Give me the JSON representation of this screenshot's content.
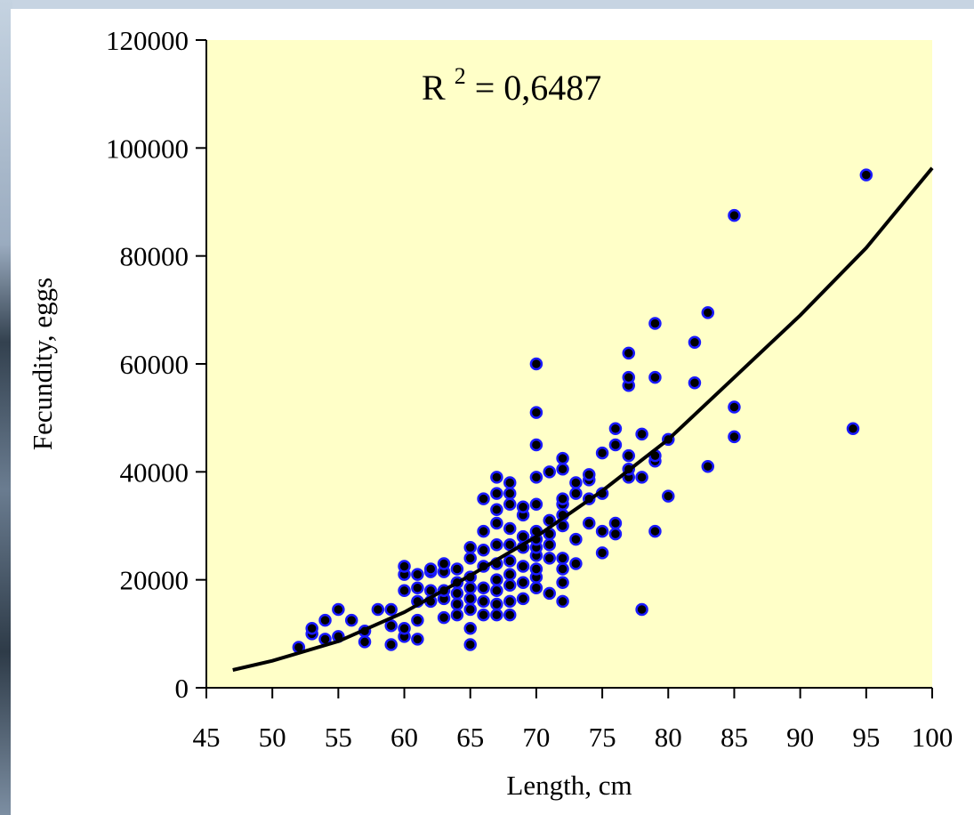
{
  "chart_data": {
    "type": "scatter",
    "xlabel": "Length, cm",
    "ylabel": "Fecundity, eggs",
    "xlim": [
      45,
      100
    ],
    "ylim": [
      0,
      120000
    ],
    "x_ticks": [
      45,
      50,
      55,
      60,
      65,
      70,
      75,
      80,
      85,
      90,
      95,
      100
    ],
    "y_ticks": [
      0,
      20000,
      40000,
      60000,
      80000,
      100000,
      120000
    ],
    "annotation": {
      "base": "R",
      "sup": "2",
      "rest": " = 0,6487"
    },
    "background_color": "#ffffc8",
    "point_fill": "#000000",
    "point_stroke": "#1a1aff",
    "trend_color": "#000000",
    "trendline": {
      "type": "power",
      "x": [
        47,
        50,
        55,
        60,
        65,
        70,
        75,
        80,
        85,
        90,
        95,
        100
      ],
      "y": [
        3300,
        5000,
        8600,
        14000,
        20800,
        28000,
        36500,
        46000,
        57500,
        69000,
        81500,
        96300
      ]
    },
    "points": [
      [
        52,
        7500
      ],
      [
        53,
        10000
      ],
      [
        53,
        11000
      ],
      [
        54,
        9000
      ],
      [
        54,
        12500
      ],
      [
        55,
        9500
      ],
      [
        55,
        14500
      ],
      [
        56,
        12500
      ],
      [
        57,
        8500
      ],
      [
        57,
        10500
      ],
      [
        58,
        14500
      ],
      [
        59,
        8000
      ],
      [
        59,
        11500
      ],
      [
        59,
        14500
      ],
      [
        60,
        9500
      ],
      [
        60,
        11000
      ],
      [
        60,
        18000
      ],
      [
        60,
        21000
      ],
      [
        60,
        22500
      ],
      [
        61,
        9000
      ],
      [
        61,
        12500
      ],
      [
        61,
        16000
      ],
      [
        61,
        18500
      ],
      [
        61,
        21000
      ],
      [
        62,
        16000
      ],
      [
        62,
        18000
      ],
      [
        62,
        21500
      ],
      [
        62,
        22000
      ],
      [
        63,
        13000
      ],
      [
        63,
        16500
      ],
      [
        63,
        18000
      ],
      [
        63,
        21500
      ],
      [
        63,
        23000
      ],
      [
        64,
        13500
      ],
      [
        64,
        15500
      ],
      [
        64,
        17500
      ],
      [
        64,
        19500
      ],
      [
        64,
        22000
      ],
      [
        65,
        8000
      ],
      [
        65,
        11000
      ],
      [
        65,
        14500
      ],
      [
        65,
        16500
      ],
      [
        65,
        18500
      ],
      [
        65,
        20500
      ],
      [
        65,
        24000
      ],
      [
        65,
        26000
      ],
      [
        66,
        13500
      ],
      [
        66,
        16000
      ],
      [
        66,
        18500
      ],
      [
        66,
        22500
      ],
      [
        66,
        25500
      ],
      [
        66,
        29000
      ],
      [
        66,
        35000
      ],
      [
        67,
        13500
      ],
      [
        67,
        15500
      ],
      [
        67,
        18000
      ],
      [
        67,
        20000
      ],
      [
        67,
        23000
      ],
      [
        67,
        26500
      ],
      [
        67,
        30500
      ],
      [
        67,
        33000
      ],
      [
        67,
        36000
      ],
      [
        67,
        39000
      ],
      [
        68,
        13500
      ],
      [
        68,
        16000
      ],
      [
        68,
        19000
      ],
      [
        68,
        21000
      ],
      [
        68,
        23500
      ],
      [
        68,
        26500
      ],
      [
        68,
        29500
      ],
      [
        68,
        34000
      ],
      [
        68,
        36000
      ],
      [
        68,
        38000
      ],
      [
        69,
        16500
      ],
      [
        69,
        19500
      ],
      [
        69,
        22500
      ],
      [
        69,
        26000
      ],
      [
        69,
        28000
      ],
      [
        69,
        32000
      ],
      [
        69,
        33500
      ],
      [
        70,
        18500
      ],
      [
        70,
        20500
      ],
      [
        70,
        22000
      ],
      [
        70,
        24500
      ],
      [
        70,
        26000
      ],
      [
        70,
        27500
      ],
      [
        70,
        29000
      ],
      [
        70,
        34000
      ],
      [
        70,
        39000
      ],
      [
        70,
        45000
      ],
      [
        70,
        51000
      ],
      [
        70,
        60000
      ],
      [
        71,
        17500
      ],
      [
        71,
        24000
      ],
      [
        71,
        26500
      ],
      [
        71,
        28500
      ],
      [
        71,
        31000
      ],
      [
        71,
        40000
      ],
      [
        72,
        16000
      ],
      [
        72,
        19500
      ],
      [
        72,
        22000
      ],
      [
        72,
        24000
      ],
      [
        72,
        30000
      ],
      [
        72,
        32000
      ],
      [
        72,
        34000
      ],
      [
        72,
        35000
      ],
      [
        72,
        40500
      ],
      [
        72,
        42500
      ],
      [
        73,
        23000
      ],
      [
        73,
        27500
      ],
      [
        73,
        36000
      ],
      [
        73,
        38000
      ],
      [
        74,
        30500
      ],
      [
        74,
        35000
      ],
      [
        74,
        38500
      ],
      [
        74,
        39500
      ],
      [
        75,
        25000
      ],
      [
        75,
        29000
      ],
      [
        75,
        36000
      ],
      [
        75,
        43500
      ],
      [
        76,
        28500
      ],
      [
        76,
        30500
      ],
      [
        76,
        45000
      ],
      [
        76,
        48000
      ],
      [
        77,
        39000
      ],
      [
        77,
        40500
      ],
      [
        77,
        43000
      ],
      [
        77,
        56000
      ],
      [
        77,
        57500
      ],
      [
        77,
        62000
      ],
      [
        78,
        14500
      ],
      [
        78,
        39000
      ],
      [
        78,
        47000
      ],
      [
        79,
        29000
      ],
      [
        79,
        42000
      ],
      [
        79,
        43000
      ],
      [
        79,
        57500
      ],
      [
        79,
        67500
      ],
      [
        80,
        35500
      ],
      [
        80,
        46000
      ],
      [
        82,
        56500
      ],
      [
        82,
        64000
      ],
      [
        83,
        41000
      ],
      [
        83,
        69500
      ],
      [
        85,
        46500
      ],
      [
        85,
        52000
      ],
      [
        85,
        87500
      ],
      [
        94,
        48000
      ],
      [
        95,
        95000
      ]
    ]
  }
}
